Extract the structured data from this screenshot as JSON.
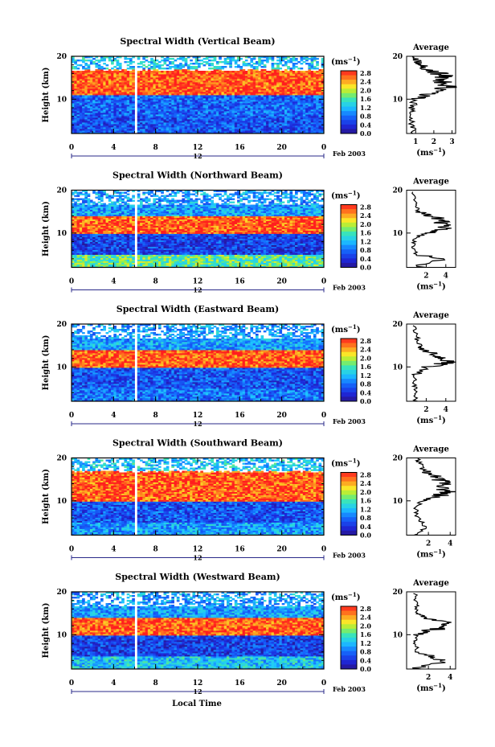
{
  "figure": {
    "xlabel": "Local Time",
    "ylabel": "Height (km)",
    "date_label": "Feb 2003",
    "day_label": "12",
    "colorbar_unit": "(ms",
    "colorbar_unit_sup": "−1",
    "colorbar_unit_close": ")",
    "average_title": "Average",
    "average_xlabel": "(ms",
    "average_xlabel_sup": "−1",
    "average_xlabel_close": ")"
  },
  "chart_data": [
    {
      "type": "heatmap",
      "title": "Spectral Width (Vertical Beam)",
      "xlabel": "Local Time",
      "ylabel": "Height (km)",
      "xlim": [
        0,
        24
      ],
      "ylim": [
        2,
        20
      ],
      "xticks": [
        "0",
        "4",
        "8",
        "12",
        "16",
        "20",
        "0"
      ],
      "yticks": [
        "10",
        "20"
      ],
      "colorbar": {
        "unit": "(ms-1)",
        "range": [
          0,
          2.8
        ],
        "ticks": [
          "2.8",
          "2.4",
          "2.0",
          "1.6",
          "1.2",
          "0.8",
          "0.4",
          "0.0"
        ]
      },
      "bands": [
        {
          "h_from": 2,
          "h_to": 6,
          "width": 0.6
        },
        {
          "h_from": 6,
          "h_to": 11,
          "width": 0.7
        },
        {
          "h_from": 11,
          "h_to": 17,
          "width": 2.6
        },
        {
          "h_from": 17,
          "h_to": 20,
          "width": 1.2
        }
      ],
      "gap_time": [
        6.0,
        6.3
      ],
      "average": {
        "xticks": [
          "1",
          "2",
          "3"
        ],
        "xlim": [
          0.5,
          3.2
        ],
        "profile": [
          [
            2,
            0.9
          ],
          [
            4,
            0.8
          ],
          [
            6,
            0.7
          ],
          [
            8,
            0.8
          ],
          [
            10,
            1.0
          ],
          [
            11,
            1.6
          ],
          [
            12,
            2.4
          ],
          [
            13,
            2.8
          ],
          [
            14,
            2.5
          ],
          [
            15,
            2.7
          ],
          [
            16,
            2.3
          ],
          [
            17,
            1.5
          ],
          [
            18,
            1.3
          ],
          [
            19,
            1.1
          ],
          [
            20,
            1.0
          ]
        ]
      }
    },
    {
      "type": "heatmap",
      "title": "Spectral Width (Northward Beam)",
      "xlabel": "Local Time",
      "ylabel": "Height (km)",
      "xlim": [
        0,
        24
      ],
      "ylim": [
        2,
        20
      ],
      "xticks": [
        "0",
        "4",
        "8",
        "12",
        "16",
        "20",
        "0"
      ],
      "yticks": [
        "10",
        "20"
      ],
      "colorbar": {
        "unit": "(ms-1)",
        "range": [
          0,
          2.8
        ],
        "ticks": [
          "2.8",
          "2.4",
          "2.0",
          "1.6",
          "1.2",
          "0.8",
          "0.4",
          "0.0"
        ]
      },
      "bands": [
        {
          "h_from": 2,
          "h_to": 5,
          "width": 1.6
        },
        {
          "h_from": 5,
          "h_to": 10,
          "width": 0.5
        },
        {
          "h_from": 10,
          "h_to": 14,
          "width": 2.6
        },
        {
          "h_from": 14,
          "h_to": 20,
          "width": 1.0
        }
      ],
      "gap_time": [
        6.0,
        6.3
      ],
      "average": {
        "xticks": [
          "2",
          "4"
        ],
        "xlim": [
          0,
          5
        ],
        "profile": [
          [
            2,
            1.2
          ],
          [
            4,
            3.5
          ],
          [
            5,
            1.0
          ],
          [
            7,
            0.7
          ],
          [
            9,
            0.9
          ],
          [
            10,
            2.0
          ],
          [
            11,
            4.3
          ],
          [
            12,
            3.5
          ],
          [
            13,
            3.8
          ],
          [
            14,
            2.3
          ],
          [
            15,
            1.2
          ],
          [
            17,
            0.9
          ],
          [
            20,
            0.6
          ]
        ]
      }
    },
    {
      "type": "heatmap",
      "title": "Spectral Width (Eastward Beam)",
      "xlabel": "Local Time",
      "ylabel": "Height (km)",
      "xlim": [
        0,
        24
      ],
      "ylim": [
        2,
        20
      ],
      "xticks": [
        "0",
        "4",
        "8",
        "12",
        "16",
        "20",
        "0"
      ],
      "yticks": [
        "10",
        "20"
      ],
      "colorbar": {
        "unit": "(ms-1)",
        "range": [
          0,
          2.8
        ],
        "ticks": [
          "2.8",
          "2.4",
          "2.0",
          "1.6",
          "1.2",
          "0.8",
          "0.4",
          "0.0"
        ]
      },
      "bands": [
        {
          "h_from": 2,
          "h_to": 5,
          "width": 0.8
        },
        {
          "h_from": 5,
          "h_to": 10,
          "width": 0.6
        },
        {
          "h_from": 10,
          "h_to": 14,
          "width": 2.6
        },
        {
          "h_from": 14,
          "h_to": 20,
          "width": 1.0
        }
      ],
      "gap_time": [
        6.0,
        6.3
      ],
      "average": {
        "xticks": [
          "2",
          "4"
        ],
        "xlim": [
          0,
          5
        ],
        "profile": [
          [
            2,
            0.9
          ],
          [
            4,
            1.0
          ],
          [
            6,
            0.8
          ],
          [
            8,
            0.9
          ],
          [
            10,
            2.0
          ],
          [
            11,
            4.2
          ],
          [
            12,
            3.6
          ],
          [
            13,
            2.8
          ],
          [
            14,
            1.6
          ],
          [
            15,
            1.4
          ],
          [
            17,
            1.0
          ],
          [
            20,
            0.8
          ]
        ]
      }
    },
    {
      "type": "heatmap",
      "title": "Spectral Width (Southward Beam)",
      "xlabel": "Local Time",
      "ylabel": "Height (km)",
      "xlim": [
        0,
        24
      ],
      "ylim": [
        2,
        20
      ],
      "xticks": [
        "0",
        "4",
        "8",
        "12",
        "16",
        "20",
        "0"
      ],
      "yticks": [
        "10",
        "20"
      ],
      "colorbar": {
        "unit": "(ms-1)",
        "range": [
          0,
          2.8
        ],
        "ticks": [
          "2.8",
          "2.4",
          "2.0",
          "1.6",
          "1.2",
          "0.8",
          "0.4",
          "0.0"
        ]
      },
      "bands": [
        {
          "h_from": 2,
          "h_to": 5,
          "width": 1.0
        },
        {
          "h_from": 5,
          "h_to": 10,
          "width": 0.6
        },
        {
          "h_from": 10,
          "h_to": 17,
          "width": 2.6
        },
        {
          "h_from": 17,
          "h_to": 20,
          "width": 1.2
        }
      ],
      "gap_time": [
        6.0,
        6.3
      ],
      "average": {
        "xticks": [
          "2",
          "4"
        ],
        "xlim": [
          0,
          4.5
        ],
        "profile": [
          [
            2,
            1.0
          ],
          [
            4,
            1.8
          ],
          [
            6,
            1.0
          ],
          [
            8,
            0.9
          ],
          [
            10,
            1.5
          ],
          [
            11,
            2.8
          ],
          [
            12,
            3.8
          ],
          [
            13,
            3.2
          ],
          [
            14,
            3.6
          ],
          [
            15,
            3.0
          ],
          [
            16,
            2.6
          ],
          [
            17,
            1.6
          ],
          [
            19,
            1.1
          ],
          [
            20,
            1.0
          ]
        ]
      }
    },
    {
      "type": "heatmap",
      "title": "Spectral Width (Westward Beam)",
      "xlabel": "Local Time",
      "ylabel": "Height (km)",
      "xlim": [
        0,
        24
      ],
      "ylim": [
        2,
        20
      ],
      "xticks": [
        "0",
        "4",
        "8",
        "12",
        "16",
        "20",
        "0"
      ],
      "yticks": [
        "10",
        "20"
      ],
      "colorbar": {
        "unit": "(ms-1)",
        "range": [
          0,
          2.8
        ],
        "ticks": [
          "2.8",
          "2.4",
          "2.0",
          "1.6",
          "1.2",
          "0.8",
          "0.4",
          "0.0"
        ]
      },
      "bands": [
        {
          "h_from": 2,
          "h_to": 5,
          "width": 1.2
        },
        {
          "h_from": 5,
          "h_to": 10,
          "width": 0.5
        },
        {
          "h_from": 10,
          "h_to": 14,
          "width": 2.6
        },
        {
          "h_from": 14,
          "h_to": 20,
          "width": 1.0
        }
      ],
      "gap_time": [
        6.0,
        6.3
      ],
      "average": {
        "xticks": [
          "2",
          "4"
        ],
        "xlim": [
          0,
          4.5
        ],
        "profile": [
          [
            2,
            1.0
          ],
          [
            4,
            3.5
          ],
          [
            5,
            2.5
          ],
          [
            6,
            1.0
          ],
          [
            8,
            0.8
          ],
          [
            10,
            1.0
          ],
          [
            11,
            2.2
          ],
          [
            12,
            4.0
          ],
          [
            13,
            3.2
          ],
          [
            14,
            1.8
          ],
          [
            15,
            1.1
          ],
          [
            17,
            0.9
          ],
          [
            20,
            0.8
          ]
        ]
      }
    }
  ]
}
